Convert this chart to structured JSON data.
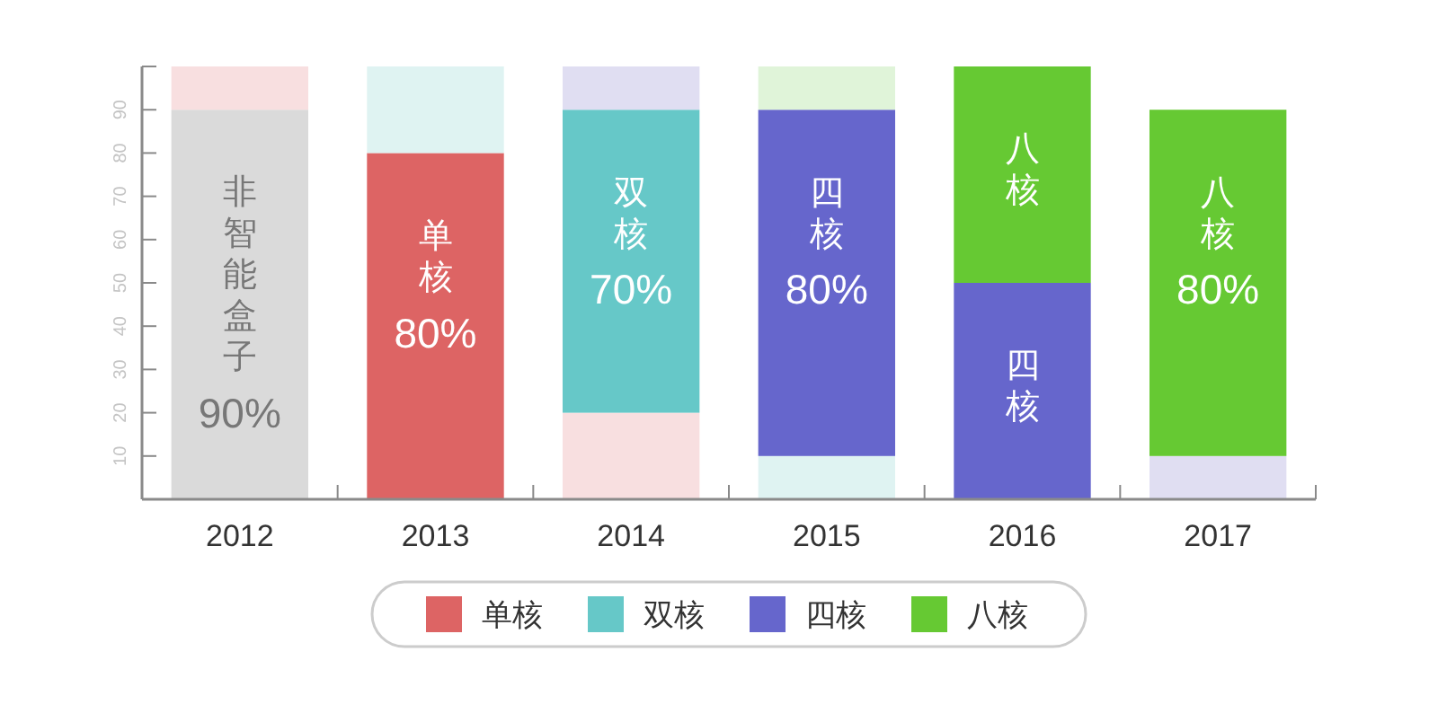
{
  "chart_data": {
    "type": "bar",
    "stacked": true,
    "categories": [
      "2012",
      "2013",
      "2014",
      "2015",
      "2016",
      "2017"
    ],
    "series": [
      {
        "color": "#dadada",
        "values": [
          90,
          null,
          null,
          null,
          null,
          null
        ],
        "value_labels": [
          "90%",
          null,
          null,
          null,
          null,
          null
        ]
      },
      {
        "name": "单核",
        "color": "#dd6464",
        "colors": [
          "#f8dfe0",
          "#dd6464",
          "#f8dfe0",
          null,
          null,
          null
        ],
        "values": [
          10,
          80,
          20,
          null,
          null,
          null
        ],
        "value_labels": [
          null,
          "80%",
          null,
          null,
          null,
          null
        ]
      },
      {
        "name": "双核",
        "color": "#66c8c8",
        "colors": [
          null,
          "#dff3f2",
          "#66c8c8",
          "#dff3f2",
          null,
          null
        ],
        "values": [
          null,
          20,
          70,
          10,
          null,
          null
        ],
        "value_labels": [
          null,
          null,
          "70%",
          null,
          null,
          null
        ]
      },
      {
        "name": "四核",
        "color": "#6666cc",
        "colors": [
          null,
          null,
          "#e0def2",
          "#6666cc",
          "#6666cc",
          "#e0def2"
        ],
        "values": [
          null,
          null,
          10,
          80,
          50,
          10
        ],
        "value_labels": [
          null,
          null,
          null,
          "80%",
          null,
          null
        ]
      },
      {
        "name": "八核",
        "color": "#66c933",
        "colors": [
          null,
          null,
          null,
          "#e0f4d9",
          "#66c933",
          "#66c933"
        ],
        "values": [
          null,
          null,
          null,
          10,
          50,
          80
        ],
        "value_labels": [
          null,
          null,
          null,
          null,
          null,
          "80%"
        ]
      }
    ],
    "annotations": [
      {
        "text": "非智能盒子",
        "x": "2012",
        "y": 90
      },
      {
        "text": "单核",
        "x": "2013",
        "y": 80
      },
      {
        "text": "双核",
        "x": "2014",
        "y": 90
      },
      {
        "text": "四核",
        "x": "2015",
        "y": 90
      },
      {
        "text": "四核",
        "x": "2016",
        "y": 50
      },
      {
        "text": "八核",
        "x": "2016",
        "y": 100
      },
      {
        "text": "八核",
        "x": "2017",
        "y": 90
      }
    ],
    "ylim": [
      0,
      100
    ],
    "yticks": [
      10,
      20,
      30,
      40,
      50,
      60,
      70,
      80,
      90,
      {
        "value": 100,
        "label": null
      }
    ],
    "legend": "bottom"
  }
}
